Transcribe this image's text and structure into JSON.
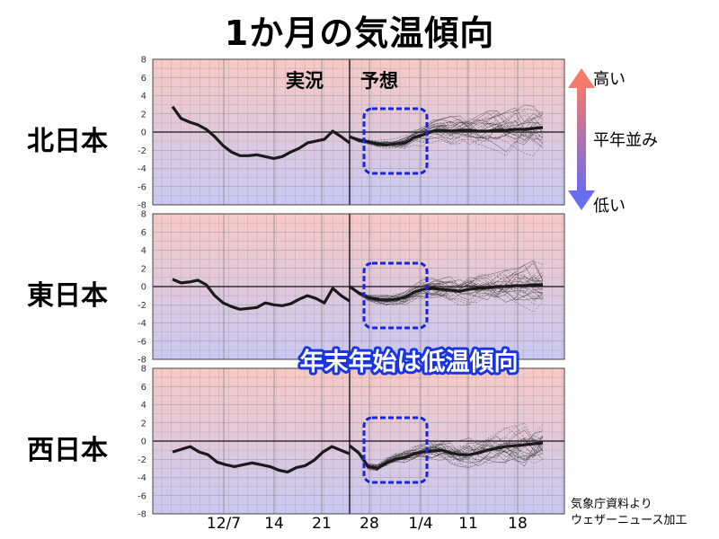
{
  "title": "1か月の気温傾向",
  "phase_labels": {
    "observed": "実況",
    "forecast": "予想"
  },
  "legend": {
    "high": "高い",
    "normal": "平年並み",
    "low": "低い",
    "high_color": "#f37a6c",
    "low_color": "#6a6cf0"
  },
  "banner": "年末年始は低温傾向",
  "credit": {
    "line1": "気象庁資料より",
    "line2": "ウェザーニュース加工"
  },
  "colors": {
    "bg_warm": "#f8c9c4",
    "bg_cool": "#c9c8f3",
    "highlight_box": "#1a24d8",
    "line": "#1a1a1a"
  },
  "chart_data": {
    "type": "line",
    "x_ticks": [
      "12/7",
      "14",
      "21",
      "28",
      "1/4",
      "11",
      "18"
    ],
    "y_ticks": [
      8,
      6,
      4,
      2,
      0,
      -2,
      -4,
      -6,
      -8
    ],
    "ylim": [
      -8,
      8
    ],
    "panels": [
      {
        "name": "北日本",
        "observed": [
          2.8,
          1.5,
          1.1,
          0.8,
          0.3,
          -0.5,
          -1.5,
          -2.2,
          -2.6,
          -2.6,
          -2.5,
          -2.7,
          -2.9,
          -2.7,
          -2.2,
          -1.8,
          -1.2,
          -1.0,
          -0.8,
          0.1,
          -0.5,
          -1.2
        ],
        "forecast_mean": [
          -0.5,
          -0.9,
          -1.1,
          -1.3,
          -1.4,
          -1.3,
          -1.2,
          -0.6,
          -0.3,
          0.1,
          0.2,
          0.1,
          0.2,
          0.2,
          0.1,
          0.1,
          0.2,
          0.2,
          0.3,
          0.3,
          0.4,
          0.5
        ]
      },
      {
        "name": "東日本",
        "observed": [
          0.8,
          0.4,
          0.5,
          0.7,
          0.2,
          -1.0,
          -1.8,
          -2.2,
          -2.5,
          -2.4,
          -2.3,
          -1.8,
          -2.0,
          -2.1,
          -1.9,
          -1.4,
          -1.0,
          -1.3,
          -1.8,
          -0.2,
          -1.0,
          -1.6
        ],
        "forecast_mean": [
          0.0,
          -0.7,
          -1.2,
          -1.4,
          -1.5,
          -1.4,
          -1.2,
          -0.6,
          -0.3,
          -0.2,
          -0.3,
          -0.4,
          -0.5,
          -0.3,
          -0.2,
          -0.1,
          0.0,
          0.0,
          0.1,
          0.1,
          0.2,
          0.2
        ]
      },
      {
        "name": "西日本",
        "observed": [
          -1.2,
          -0.9,
          -0.6,
          -1.2,
          -1.5,
          -2.3,
          -2.6,
          -2.8,
          -2.6,
          -2.4,
          -2.6,
          -2.8,
          -3.2,
          -3.4,
          -2.9,
          -2.7,
          -2.1,
          -1.2,
          -0.6,
          -1.0,
          -1.4
        ],
        "forecast_mean": [
          -0.5,
          -1.3,
          -2.8,
          -3.0,
          -2.4,
          -2.0,
          -1.8,
          -1.4,
          -1.2,
          -1.1,
          -1.0,
          -1.3,
          -1.5,
          -1.5,
          -1.3,
          -1.0,
          -0.8,
          -0.6,
          -0.5,
          -0.4,
          -0.3,
          -0.2
        ]
      }
    ]
  }
}
